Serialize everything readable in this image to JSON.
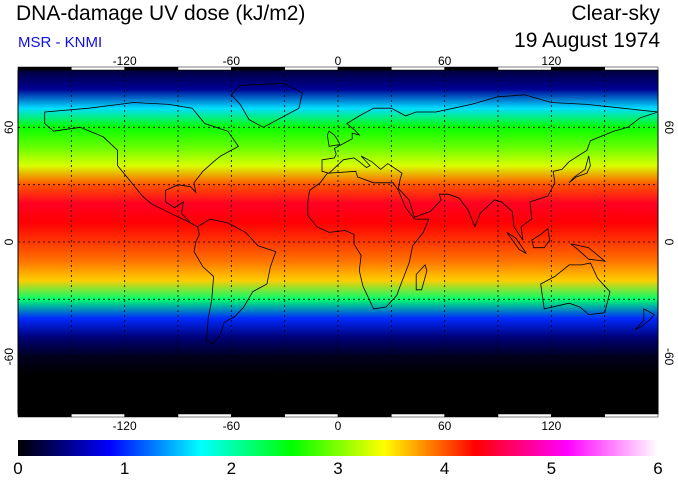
{
  "header": {
    "title": "DNA-damage UV dose (kJ/m2)",
    "subtitle": "MSR - KNMI",
    "condition": "Clear-sky",
    "date": "19 August 1974"
  },
  "colors": {
    "subtitle": "#1010e0",
    "gradient": [
      "#000000",
      "#0000ff",
      "#00ffff",
      "#00ff00",
      "#ffff00",
      "#ff0000",
      "#ff00ff",
      "#ffffff"
    ]
  },
  "chart_data": {
    "type": "heatmap",
    "title": "DNA-damage UV dose (kJ/m2)",
    "xlabel": "",
    "ylabel": "",
    "longitude_ticks": [
      "-120",
      "-60",
      "0",
      "60",
      "120"
    ],
    "latitude_ticks": [
      "60",
      "0",
      "-60"
    ],
    "xlim": [
      -180,
      180
    ],
    "ylim": [
      -90,
      90
    ],
    "colorbar": {
      "ticks": [
        "0",
        "1",
        "2",
        "3",
        "4",
        "5",
        "6"
      ],
      "range": [
        0,
        6
      ],
      "units": "kJ/m2"
    },
    "latitudinal_profile": {
      "latitudes": [
        90,
        80,
        70,
        60,
        50,
        40,
        30,
        20,
        10,
        0,
        -10,
        -20,
        -30,
        -40,
        -50,
        -60,
        -70,
        -80,
        -90
      ],
      "values": [
        0.2,
        0.5,
        1.6,
        2.6,
        2.9,
        3.3,
        4.0,
        4.4,
        4.3,
        4.1,
        3.9,
        3.6,
        2.2,
        1.0,
        0.4,
        0.1,
        0.0,
        0.0,
        0.0
      ]
    },
    "grid": true
  }
}
